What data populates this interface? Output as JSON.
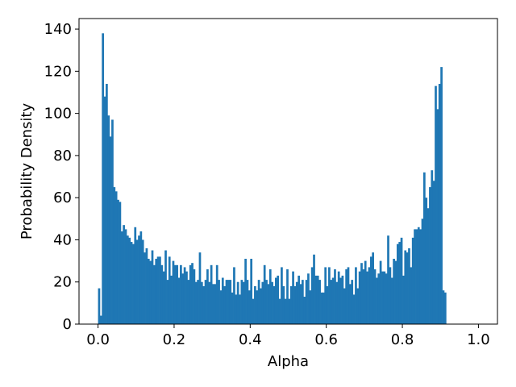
{
  "chart_data": {
    "type": "bar",
    "subtype": "histogram",
    "xlabel": "Alpha",
    "ylabel": "Probability Density",
    "xlim": [
      -0.05,
      1.05
    ],
    "ylim": [
      0,
      145
    ],
    "xticks": [
      0.0,
      0.2,
      0.4,
      0.6,
      0.8,
      1.0
    ],
    "xtick_labels": [
      "0.0",
      "0.2",
      "0.4",
      "0.6",
      "0.8",
      "1.0"
    ],
    "yticks": [
      0,
      20,
      40,
      60,
      80,
      100,
      120,
      140
    ],
    "ytick_labels": [
      "0",
      "20",
      "40",
      "60",
      "80",
      "100",
      "120",
      "140"
    ],
    "bar_color": "#1f77b4",
    "bin_width": 0.005,
    "bin_start": 0.0,
    "values": [
      17,
      4,
      138,
      108,
      114,
      99,
      89,
      97,
      65,
      63,
      59,
      58,
      44,
      47,
      45,
      42,
      41,
      39,
      38,
      46,
      40,
      42,
      44,
      40,
      34,
      36,
      31,
      30,
      35,
      28,
      31,
      32,
      32,
      28,
      25,
      35,
      21,
      32,
      23,
      30,
      28,
      28,
      22,
      28,
      24,
      27,
      25,
      21,
      28,
      29,
      26,
      20,
      21,
      34,
      20,
      18,
      21,
      26,
      20,
      28,
      19,
      19,
      28,
      21,
      16,
      22,
      18,
      21,
      21,
      21,
      15,
      27,
      14,
      20,
      14,
      21,
      20,
      31,
      21,
      16,
      31,
      12,
      18,
      16,
      21,
      17,
      20,
      28,
      21,
      19,
      26,
      20,
      18,
      22,
      23,
      12,
      27,
      18,
      12,
      26,
      12,
      18,
      25,
      18,
      20,
      23,
      19,
      21,
      13,
      21,
      24,
      16,
      27,
      33,
      23,
      23,
      21,
      15,
      15,
      27,
      18,
      27,
      21,
      22,
      26,
      20,
      25,
      22,
      23,
      17,
      26,
      27,
      19,
      21,
      14,
      27,
      17,
      25,
      29,
      26,
      30,
      25,
      27,
      32,
      34,
      26,
      22,
      24,
      30,
      25,
      25,
      24,
      42,
      27,
      22,
      31,
      30,
      38,
      39,
      41,
      23,
      35,
      34,
      36,
      27,
      41,
      45,
      45,
      46,
      45,
      50,
      72,
      60,
      55,
      65,
      73,
      68,
      113,
      102,
      114,
      122,
      16,
      15
    ]
  }
}
